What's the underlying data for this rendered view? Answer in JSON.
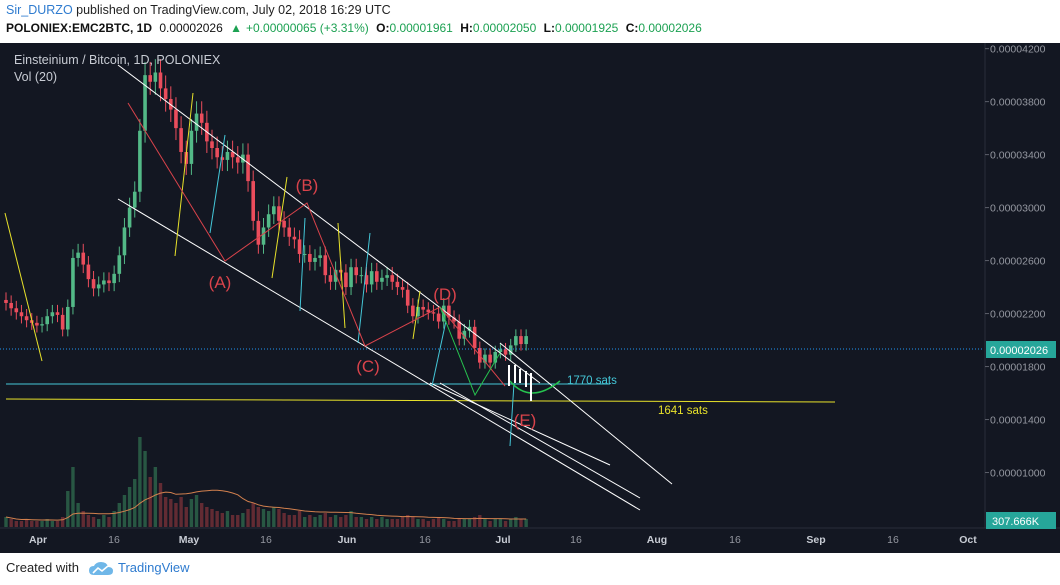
{
  "header": {
    "author": "Sir_DURZO",
    "published_text": "published on TradingView.com, July 02, 2018 16:29 UTC",
    "symbol": "POLONIEX:EMC2BTC, 1D",
    "last": "0.00002026",
    "change": "+0.00000065 (+3.31%)",
    "o_label": "O:",
    "o": "0.00001961",
    "h_label": "H:",
    "h": "0.00002050",
    "l_label": "L:",
    "l": "0.00001925",
    "c_label": "C:",
    "c": "0.00002026"
  },
  "legend": {
    "title": "Einsteinium / Bitcoin, 1D, POLONIEX",
    "volume": "Vol (20)"
  },
  "footer": {
    "created_with": "Created with",
    "brand": "TradingView"
  },
  "colors": {
    "background": "#131722",
    "up": "#53b987",
    "down": "#eb4d5c",
    "channel": "#ffffff",
    "cyan": "#44c7d8",
    "yellow": "#e8e22a",
    "red_wave": "#d9434b",
    "green_wave": "#27c34f",
    "last_price": "#2196f3"
  },
  "chart_data": {
    "type": "candlestick",
    "title": "Einsteinium / Bitcoin, 1D, POLONIEX",
    "x_ticks": [
      "Apr",
      "16",
      "May",
      "16",
      "Jun",
      "16",
      "Jul",
      "16",
      "Aug",
      "16",
      "Sep",
      "16",
      "Oct"
    ],
    "y_ticks": [
      "0.00004200",
      "0.00003800",
      "0.00003400",
      "0.00003000",
      "0.00002600",
      "0.00002200",
      "0.00001800",
      "0.00001400",
      "0.00001000"
    ],
    "y_range": [
      7.7e-06,
      4.22e-05
    ],
    "last_price_label": "0.00002026",
    "volume_label": "307.666K",
    "start_date": "2018-03-20",
    "prices": [
      2.28e-05,
      2.24e-05,
      2.21e-05,
      2.18e-05,
      2.15e-05,
      2.13e-05,
      2.11e-05,
      2.12e-05,
      2.18e-05,
      2.21e-05,
      2.19e-05,
      2.08e-05,
      2.25e-05,
      2.62e-05,
      2.66e-05,
      2.57e-05,
      2.46e-05,
      2.39e-05,
      2.42e-05,
      2.45e-05,
      2.43e-05,
      2.5e-05,
      2.64e-05,
      2.85e-05,
      3e-05,
      3.12e-05,
      3.58e-05,
      4e-05,
      3.95e-05,
      4.02e-05,
      3.9e-05,
      3.82e-05,
      3.74e-05,
      3.6e-05,
      3.42e-05,
      3.33e-05,
      3.58e-05,
      3.71e-05,
      3.64e-05,
      3.5e-05,
      3.45e-05,
      3.38e-05,
      3.36e-05,
      3.42e-05,
      3.38e-05,
      3.34e-05,
      3.4e-05,
      3.2e-05,
      2.9e-05,
      2.72e-05,
      2.85e-05,
      2.95e-05,
      3.01e-05,
      2.9e-05,
      2.85e-05,
      2.78e-05,
      2.76e-05,
      2.65e-05,
      2.65e-05,
      2.59e-05,
      2.62e-05,
      2.64e-05,
      2.49e-05,
      2.44e-05,
      2.53e-05,
      2.51e-05,
      2.4e-05,
      2.55e-05,
      2.49e-05,
      2.49e-05,
      2.42e-05,
      2.52e-05,
      2.44e-05,
      2.47e-05,
      2.49e-05,
      2.44e-05,
      2.4e-05,
      2.38e-05,
      2.26e-05,
      2.18e-05,
      2.25e-05,
      2.23e-05,
      2.21e-05,
      2.2e-05,
      2.14e-05,
      2.26e-05,
      2.17e-05,
      2.14e-05,
      2.01e-05,
      2.07e-05,
      2.1e-05,
      1.94e-05,
      1.83e-05,
      1.89e-05,
      1.83e-05,
      1.91e-05,
      1.93e-05,
      1.89e-05,
      1.96e-05,
      2.03e-05,
      1.97e-05,
      2.03e-05
    ],
    "volumes": [
      5,
      4,
      3,
      3,
      4,
      3,
      3,
      3,
      4,
      3,
      3,
      5,
      18,
      30,
      12,
      8,
      6,
      5,
      4,
      6,
      5,
      8,
      12,
      16,
      20,
      24,
      45,
      38,
      25,
      30,
      22,
      15,
      14,
      12,
      15,
      10,
      14,
      16,
      12,
      10,
      9,
      8,
      7,
      8,
      6,
      6,
      7,
      9,
      12,
      10,
      9,
      8,
      10,
      9,
      7,
      6,
      6,
      8,
      5,
      6,
      5,
      6,
      7,
      5,
      6,
      5,
      6,
      8,
      5,
      5,
      4,
      5,
      4,
      5,
      4,
      4,
      4,
      5,
      6,
      5,
      4,
      4,
      3,
      4,
      5,
      4,
      3,
      3,
      4,
      4,
      4,
      5,
      6,
      4,
      3,
      4,
      4,
      3,
      4,
      5,
      4,
      4
    ],
    "wave_labels": [
      "(A)",
      "(B)",
      "(C)",
      "(D)",
      "(E)"
    ],
    "level_labels": [
      "1770 sats",
      "1641 sats"
    ]
  }
}
